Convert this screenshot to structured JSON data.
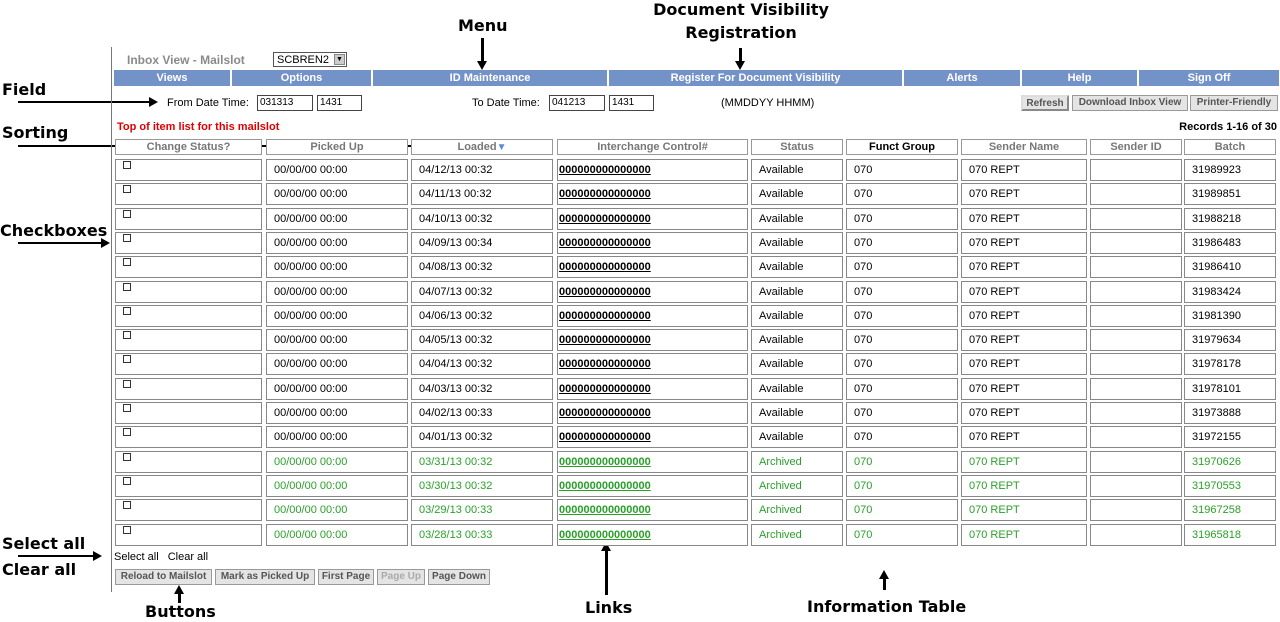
{
  "callouts": {
    "menu": "Menu",
    "doc_visibility": "Document Visibility",
    "registration": "Registration",
    "field": "Field",
    "sorting": "Sorting",
    "checkboxes": "Checkboxes",
    "select_all": "Select all",
    "clear_all": "Clear all",
    "buttons": "Buttons",
    "links": "Links",
    "information_table": "Information Table"
  },
  "header": {
    "title": "Inbox View - Mailslot",
    "mailslot_value": "SCBREN2"
  },
  "menu": [
    "Views",
    "Options",
    "ID Maintenance",
    "Register For Document Visibility",
    "Alerts",
    "Help",
    "Sign Off"
  ],
  "filters": {
    "from_label": "From Date Time:",
    "from_date": "031313",
    "from_time": "1431",
    "to_label": "To Date Time:",
    "to_date": "041213",
    "to_time": "1431",
    "format_hint": "(MMDDYY HHMM)"
  },
  "top_buttons": {
    "refresh": "Refresh",
    "download": "Download Inbox View",
    "printer": "Printer-Friendly"
  },
  "list_title": "Top of item list for this mailslot",
  "records": "Records 1-16 of 30",
  "columns": [
    "Change Status?",
    "Picked Up",
    "Loaded",
    "Interchange Control#",
    "Status",
    "Funct Group",
    "Sender Name",
    "Sender ID",
    "Batch"
  ],
  "sort_indicator": "▼",
  "rows": [
    {
      "picked": "00/00/00 00:00",
      "loaded": "04/12/13 00:32",
      "icn": "000000000000000",
      "status": "Available",
      "funct": "070",
      "sender": "070 REPT",
      "sid": "",
      "batch": "31989923"
    },
    {
      "picked": "00/00/00 00:00",
      "loaded": "04/11/13 00:32",
      "icn": "000000000000000",
      "status": "Available",
      "funct": "070",
      "sender": "070 REPT",
      "sid": "",
      "batch": "31989851"
    },
    {
      "picked": "00/00/00 00:00",
      "loaded": "04/10/13 00:32",
      "icn": "000000000000000",
      "status": "Available",
      "funct": "070",
      "sender": "070 REPT",
      "sid": "",
      "batch": "31988218"
    },
    {
      "picked": "00/00/00 00:00",
      "loaded": "04/09/13 00:34",
      "icn": "000000000000000",
      "status": "Available",
      "funct": "070",
      "sender": "070 REPT",
      "sid": "",
      "batch": "31986483"
    },
    {
      "picked": "00/00/00 00:00",
      "loaded": "04/08/13 00:32",
      "icn": "000000000000000",
      "status": "Available",
      "funct": "070",
      "sender": "070 REPT",
      "sid": "",
      "batch": "31986410"
    },
    {
      "picked": "00/00/00 00:00",
      "loaded": "04/07/13 00:32",
      "icn": "000000000000000",
      "status": "Available",
      "funct": "070",
      "sender": "070 REPT",
      "sid": "",
      "batch": "31983424"
    },
    {
      "picked": "00/00/00 00:00",
      "loaded": "04/06/13 00:32",
      "icn": "000000000000000",
      "status": "Available",
      "funct": "070",
      "sender": "070 REPT",
      "sid": "",
      "batch": "31981390"
    },
    {
      "picked": "00/00/00 00:00",
      "loaded": "04/05/13 00:32",
      "icn": "000000000000000",
      "status": "Available",
      "funct": "070",
      "sender": "070 REPT",
      "sid": "",
      "batch": "31979634"
    },
    {
      "picked": "00/00/00 00:00",
      "loaded": "04/04/13 00:32",
      "icn": "000000000000000",
      "status": "Available",
      "funct": "070",
      "sender": "070 REPT",
      "sid": "",
      "batch": "31978178"
    },
    {
      "picked": "00/00/00 00:00",
      "loaded": "04/03/13 00:32",
      "icn": "000000000000000",
      "status": "Available",
      "funct": "070",
      "sender": "070 REPT",
      "sid": "",
      "batch": "31978101"
    },
    {
      "picked": "00/00/00 00:00",
      "loaded": "04/02/13 00:33",
      "icn": "000000000000000",
      "status": "Available",
      "funct": "070",
      "sender": "070 REPT",
      "sid": "",
      "batch": "31973888"
    },
    {
      "picked": "00/00/00 00:00",
      "loaded": "04/01/13 00:32",
      "icn": "000000000000000",
      "status": "Available",
      "funct": "070",
      "sender": "070 REPT",
      "sid": "",
      "batch": "31972155"
    },
    {
      "picked": "00/00/00 00:00",
      "loaded": "03/31/13 00:32",
      "icn": "000000000000000",
      "status": "Archived",
      "funct": "070",
      "sender": "070 REPT",
      "sid": "",
      "batch": "31970626"
    },
    {
      "picked": "00/00/00 00:00",
      "loaded": "03/30/13 00:32",
      "icn": "000000000000000",
      "status": "Archived",
      "funct": "070",
      "sender": "070 REPT",
      "sid": "",
      "batch": "31970553"
    },
    {
      "picked": "00/00/00 00:00",
      "loaded": "03/29/13 00:33",
      "icn": "000000000000000",
      "status": "Archived",
      "funct": "070",
      "sender": "070 REPT",
      "sid": "",
      "batch": "31967258"
    },
    {
      "picked": "00/00/00 00:00",
      "loaded": "03/28/13 00:33",
      "icn": "000000000000000",
      "status": "Archived",
      "funct": "070",
      "sender": "070 REPT",
      "sid": "",
      "batch": "31965818"
    }
  ],
  "select_all": "Select all",
  "clear_all": "Clear all",
  "bottom_buttons": [
    "Reload to Mailslot",
    "Mark as Picked Up",
    "First Page",
    "Page Up",
    "Page Down"
  ],
  "colors": {
    "menu_bg": "#7393c8",
    "archived": "#2aa02a",
    "list_title": "#e00000"
  }
}
